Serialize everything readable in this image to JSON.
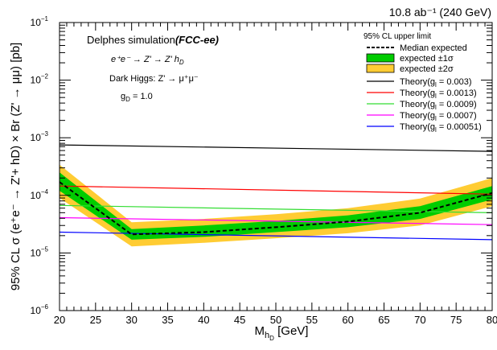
{
  "chart_data": {
    "type": "line",
    "title": "10.8 ab⁻¹ (240 GeV)",
    "xlabel": "M",
    "xlabel_sub": "h",
    "xlabel_subsub": "D",
    "xlabel_unit": " [GeV]",
    "ylabel": "95% CL σ (e⁺e⁻ → Z'+ hD) × Br (Z' → μμ) [pb]",
    "xlim": [
      20,
      80
    ],
    "ylim": [
      1e-06,
      0.1
    ],
    "yscale": "log",
    "x_ticks": [
      20,
      25,
      30,
      35,
      40,
      45,
      50,
      55,
      60,
      65,
      70,
      75,
      80
    ],
    "y_tick_labels": [
      {
        "value": 1e-06,
        "base": "10",
        "exp": "−6"
      },
      {
        "value": 1e-05,
        "base": "10",
        "exp": "−5"
      },
      {
        "value": 0.0001,
        "base": "10",
        "exp": "−4"
      },
      {
        "value": 0.001,
        "base": "10",
        "exp": "−3"
      },
      {
        "value": 0.01,
        "base": "10",
        "exp": "−2"
      },
      {
        "value": 0.1,
        "base": "10",
        "exp": "−1"
      }
    ],
    "annotations": {
      "delphes": "Delphes simulation",
      "fccee": "(FCC-ee)",
      "process": "e⁺e⁻ → Z' → Z' h",
      "process_sub": "D",
      "dark_higgs": "Dark Higgs: Z' → μ⁺μ⁻",
      "gd_main": "g",
      "gd_sub": "D",
      "gd_value": " = 1.0"
    },
    "legend": {
      "placement": "top-right",
      "header": "95% CL upper limit",
      "median": "Median expected",
      "band1": "expected ±1σ",
      "band2": "expected ±2σ"
    },
    "mass_points": [
      20,
      30,
      40,
      50,
      60,
      70,
      80
    ],
    "median_expected": [
      0.00017,
      2.1e-05,
      2.3e-05,
      2.8e-05,
      3.5e-05,
      5e-05,
      0.00011
    ],
    "band_1sigma": {
      "low": [
        0.00012,
        1.7e-05,
        1.9e-05,
        2.3e-05,
        2.8e-05,
        3.9e-05,
        8.5e-05
      ],
      "high": [
        0.00025,
        2.6e-05,
        3e-05,
        3.6e-05,
        4.5e-05,
        6.5e-05,
        0.000145
      ]
    },
    "band_2sigma": {
      "low": [
        9e-05,
        1.3e-05,
        1.5e-05,
        1.8e-05,
        2.2e-05,
        3e-05,
        6.5e-05
      ],
      "high": [
        0.00034,
        3.4e-05,
        3.9e-05,
        4.7e-05,
        6e-05,
        8.8e-05,
        0.0002
      ]
    },
    "theory_series": [
      {
        "name_main": "Theory(g",
        "name_sub": "l",
        "name_val": " = 0.003)",
        "color": "#000000",
        "x": [
          20,
          80
        ],
        "values": [
          0.00075,
          0.00058
        ]
      },
      {
        "name_main": "Theory(g",
        "name_sub": "l",
        "name_val": " = 0.0013)",
        "color": "#ff0000",
        "x": [
          20,
          80
        ],
        "values": [
          0.000145,
          0.000105
        ]
      },
      {
        "name_main": "Theory(g",
        "name_sub": "l",
        "name_val": " = 0.0009)",
        "color": "#33dd33",
        "x": [
          20,
          80
        ],
        "values": [
          6.7e-05,
          5e-05
        ]
      },
      {
        "name_main": "Theory(g",
        "name_sub": "l",
        "name_val": " = 0.0007)",
        "color": "#ff00ff",
        "x": [
          20,
          80
        ],
        "values": [
          4.1e-05,
          3.1e-05
        ]
      },
      {
        "name_main": "Theory(g",
        "name_sub": "l",
        "name_val": " = 0.00051)",
        "color": "#0000ff",
        "x": [
          20,
          80
        ],
        "values": [
          2.3e-05,
          1.7e-05
        ]
      }
    ],
    "colors": {
      "band_1sigma": "#00cc00",
      "band_2sigma": "#ffcc33"
    }
  }
}
